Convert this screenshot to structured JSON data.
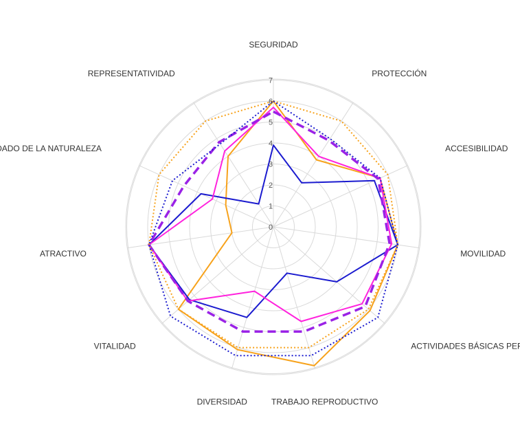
{
  "chart_data": {
    "type": "radar",
    "axes": [
      "SEGURIDAD",
      "PROTECCIÓN",
      "ACCESIBILIDAD",
      "MOVILIDAD",
      "ACTIVIDADES BÁSICAS PERSONAS",
      "TRABAJO REPRODUCTIVO",
      "DIVERSIDAD",
      "VITALIDAD",
      "ATRACTIVO",
      "CUIDADO DE LA NATURALEZA",
      "REPRESENTATIVIDAD"
    ],
    "ticks": [
      "0",
      "1",
      "2",
      "3",
      "4",
      "5",
      "6",
      "7"
    ],
    "range": [
      0,
      7
    ],
    "grid": true,
    "legend": "none",
    "series": [
      {
        "color": "#f7a21b",
        "dash": "solid",
        "width": 2,
        "values": [
          6,
          3.8,
          5.6,
          6.0,
          6.1,
          6.9,
          6.1,
          6.0,
          2.0,
          2.5,
          4.0
        ]
      },
      {
        "color": "#1b1bcf",
        "dash": "solid",
        "width": 2,
        "values": [
          3.9,
          2.5,
          5.3,
          6.0,
          4.0,
          2.3,
          4.5,
          5.3,
          6.0,
          3.8,
          1.3
        ]
      },
      {
        "color": "#ff22dd",
        "dash": "solid",
        "width": 2,
        "values": [
          5.7,
          4.0,
          5.6,
          5.7,
          5.6,
          4.7,
          3.2,
          5.4,
          6.0,
          3.2,
          4.3
        ]
      },
      {
        "color": "#9a22e6",
        "dash": "dashed",
        "width": 3.5,
        "values": [
          5.5,
          4.9,
          5.5,
          5.6,
          5.8,
          5.2,
          5.2,
          5.4,
          6.0,
          4.7,
          4.8
        ]
      },
      {
        "color": "#f7a21b",
        "dash": "dotted",
        "width": 2,
        "values": [
          6,
          6.0,
          6.0,
          6.0,
          6.0,
          6.0,
          6.0,
          6.0,
          6.0,
          6.0,
          6.0
        ]
      },
      {
        "color": "#1b1bcf",
        "dash": "dotted",
        "width": 2,
        "values": [
          6,
          5.0,
          5.6,
          6.0,
          6.6,
          6.4,
          6.4,
          6.5,
          6.0,
          5.3,
          4.7
        ]
      }
    ]
  }
}
